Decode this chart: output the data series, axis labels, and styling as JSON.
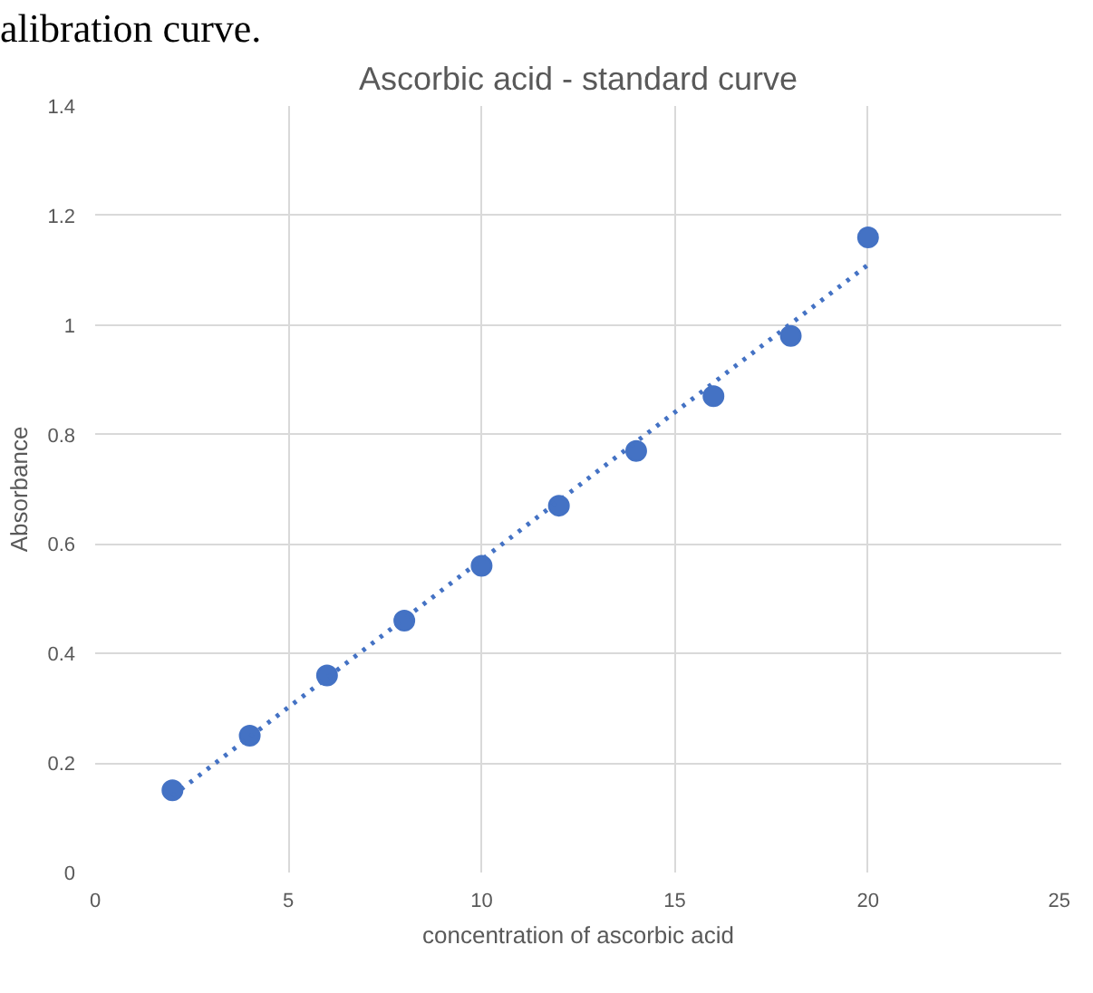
{
  "chart_data": {
    "type": "scatter",
    "title": "Ascorbic acid - standard curve",
    "xlabel": "concentration of ascorbic acid",
    "ylabel": "Absorbance",
    "annotations": [
      "alibration curve."
    ],
    "x": [
      2,
      4,
      6,
      8,
      10,
      12,
      14,
      16,
      18,
      20
    ],
    "series": [
      {
        "color": "#4472c4",
        "values": [
          0.15,
          0.25,
          0.36,
          0.46,
          0.56,
          0.67,
          0.77,
          0.87,
          0.98,
          1.16
        ],
        "marker": "circle"
      },
      {
        "type": "line",
        "color": "#4472c4",
        "x": [
          2,
          20
        ],
        "values": [
          0.14,
          1.11
        ],
        "line_style": "dotted"
      }
    ],
    "xlim": [
      0,
      25
    ],
    "xticks": [
      0,
      5,
      10,
      15,
      20,
      25
    ],
    "ylim": [
      0,
      1.4
    ],
    "yticks": [
      0,
      0.2,
      0.4,
      0.6,
      0.8,
      1,
      1.2,
      1.4
    ],
    "grid": true
  }
}
